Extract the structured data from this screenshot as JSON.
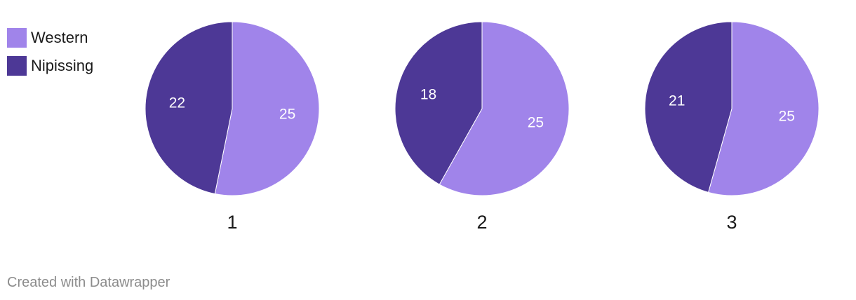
{
  "chart_data": {
    "type": "pie",
    "series": [
      {
        "name": "Western",
        "color": "#a084ea"
      },
      {
        "name": "Nipissing",
        "color": "#4d3896"
      }
    ],
    "pies": [
      {
        "label": "1",
        "values": {
          "Western": 25,
          "Nipissing": 22
        }
      },
      {
        "label": "2",
        "values": {
          "Western": 25,
          "Nipissing": 18
        }
      },
      {
        "label": "3",
        "values": {
          "Western": 25,
          "Nipissing": 21
        }
      }
    ],
    "legend_position": "top-left"
  },
  "footer": {
    "credit": "Created with Datawrapper"
  }
}
